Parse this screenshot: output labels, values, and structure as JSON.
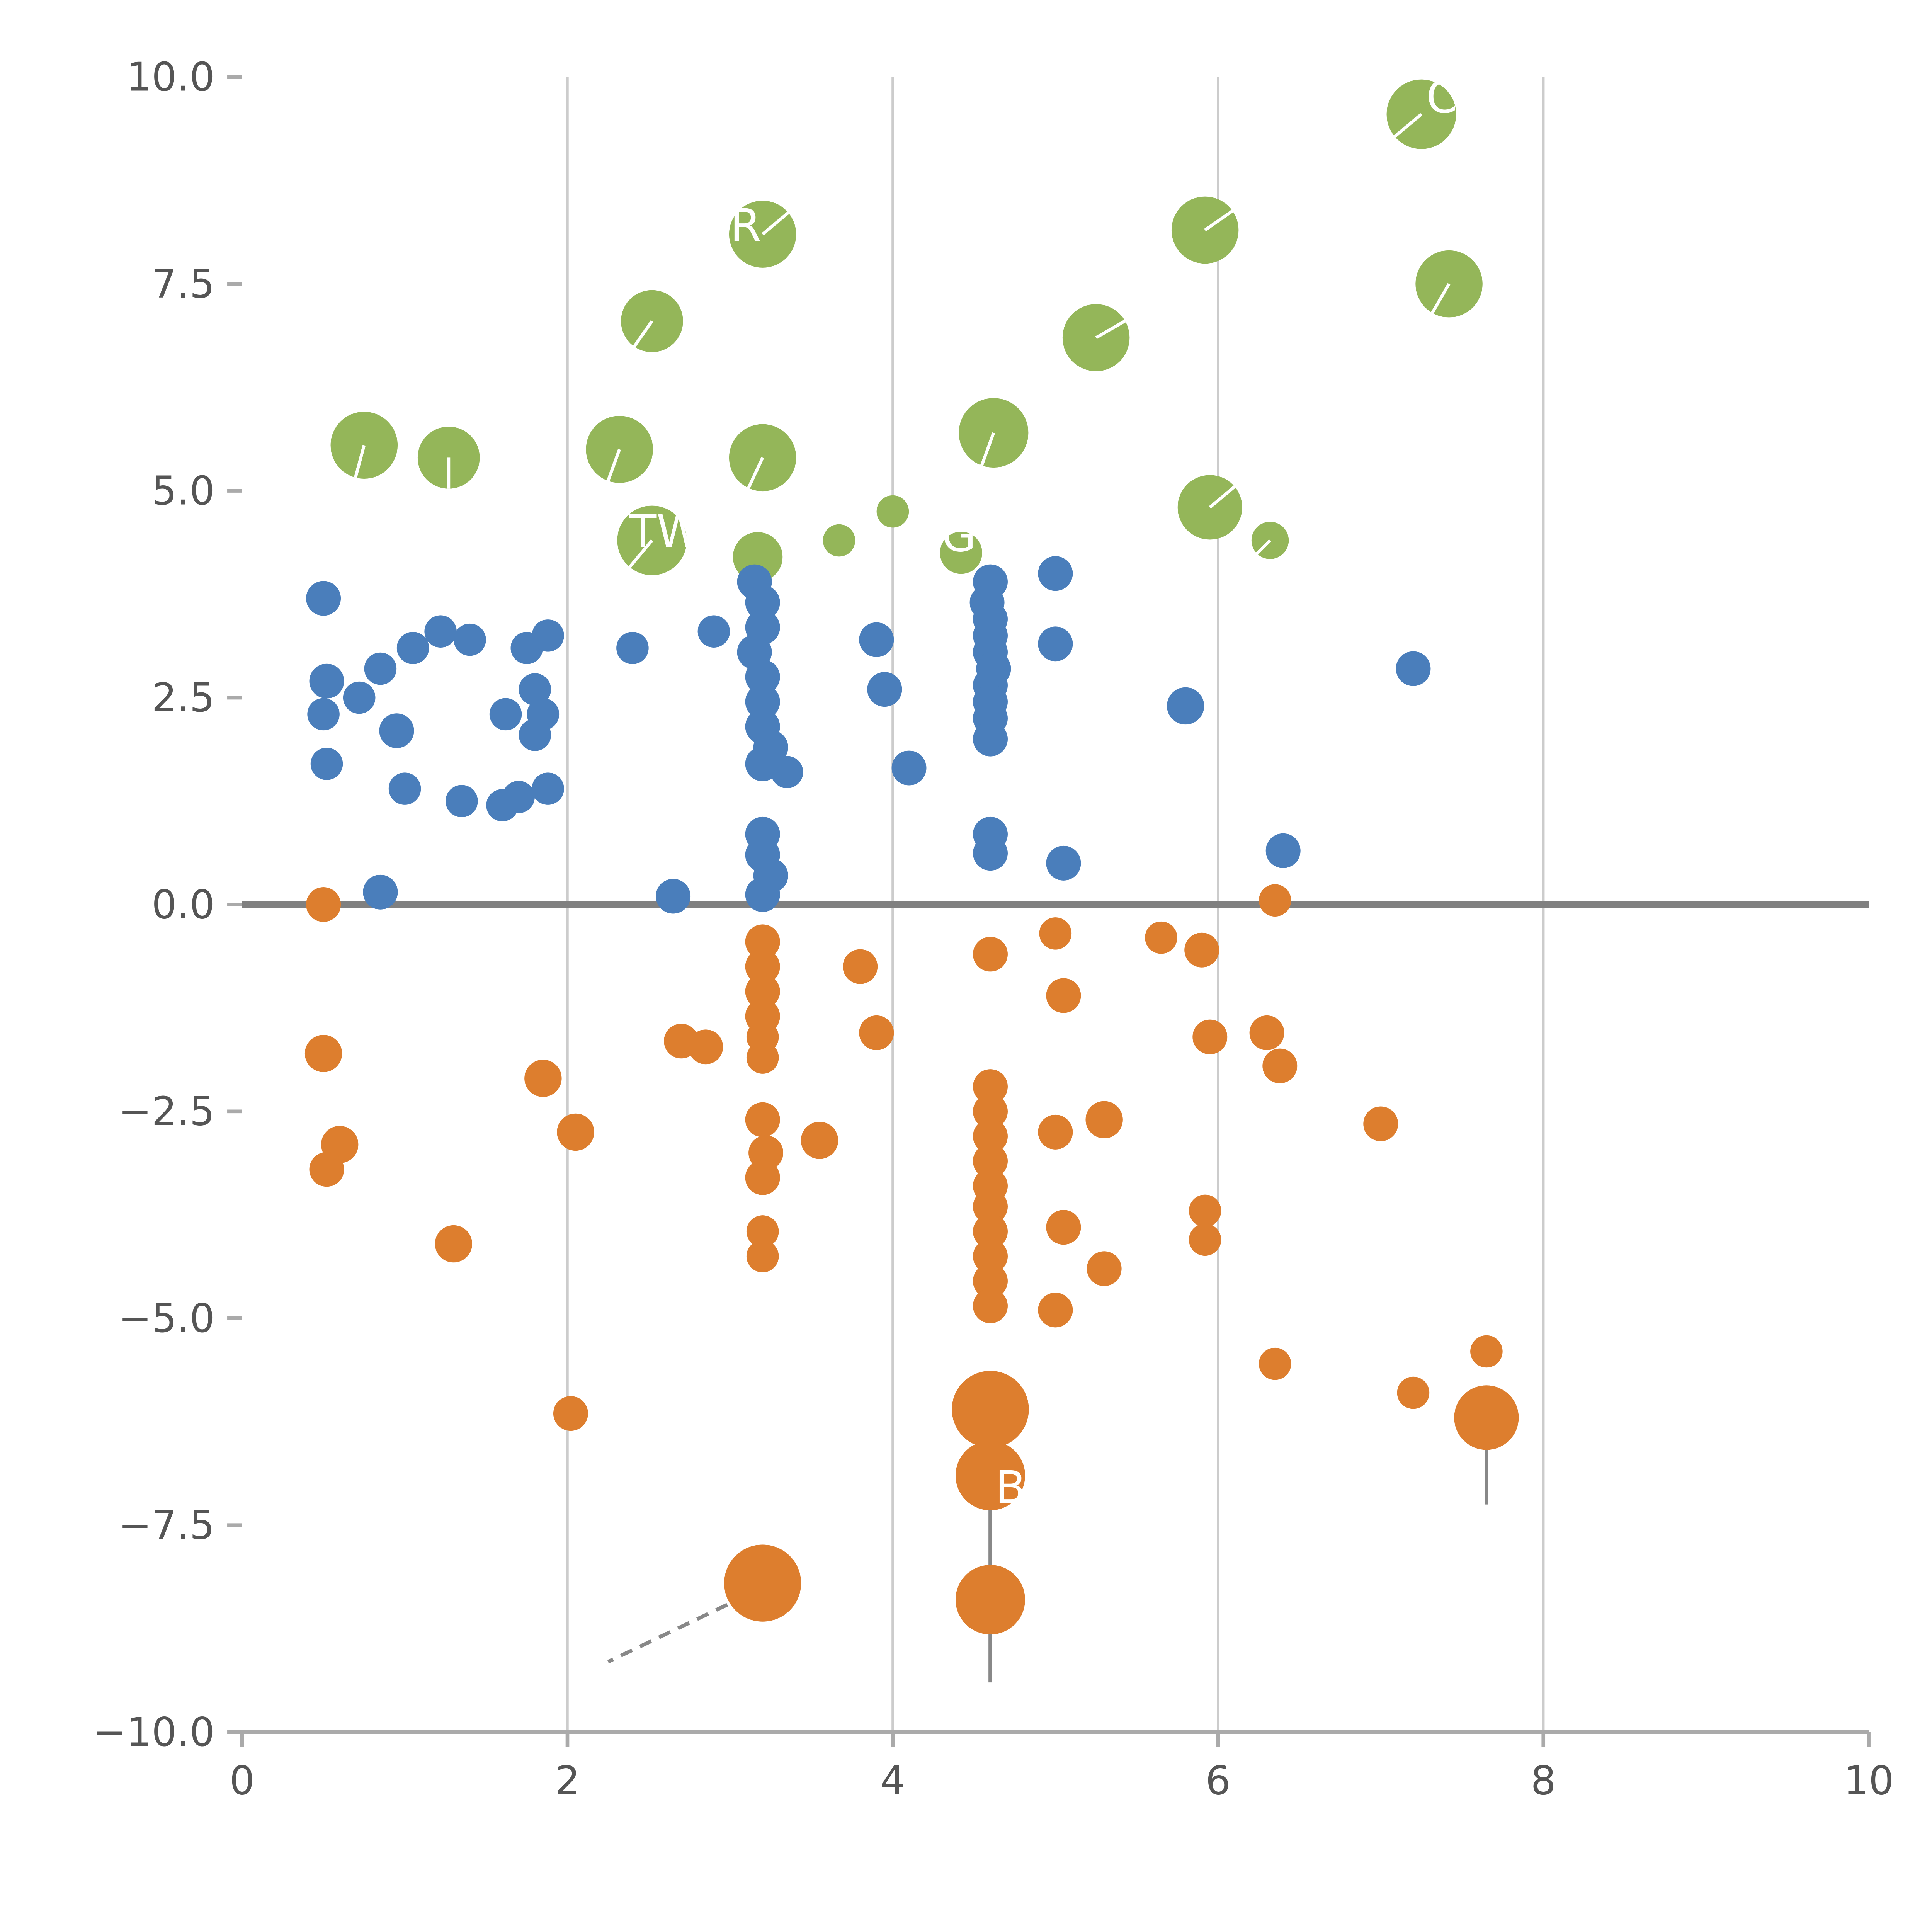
{
  "page": {
    "title": ""
  },
  "chart_data": {
    "type": "scatter",
    "title": "",
    "xlabel": "",
    "ylabel": "",
    "xlim": [
      0,
      10
    ],
    "ylim": [
      -10,
      10
    ],
    "grid": "vertical-only",
    "legend": "none",
    "x_tick_values": [
      0,
      2,
      4,
      6,
      8,
      10
    ],
    "x_tick_labels": [
      "0",
      "2",
      "4",
      "6",
      "8",
      "10"
    ],
    "y_tick_values": [
      10,
      7.5,
      5,
      2.5,
      0,
      -2.5,
      -5,
      -7.5,
      -10
    ],
    "y_tick_labels": [
      "10.0",
      "7.5",
      "5.0",
      "2.5",
      "0.0",
      "−2.5",
      "−5.0",
      "−7.5",
      "−10.0"
    ],
    "gridline_x_values": [
      2,
      4,
      6,
      8
    ],
    "zero_line_y": 0,
    "colors": {
      "green": "#94b659",
      "blue": "#4a7ebb",
      "orange": "#dd7e2e",
      "grid": "#cccccc",
      "zero_line": "#808080",
      "axis": "#aaaaaa",
      "tick_text": "#555555",
      "leader_line": "#888888",
      "annotation_text": "#ffffff"
    },
    "series": [
      {
        "name": "green-bubbles",
        "color": "#94b659",
        "points": [
          [
            0.75,
            5.55,
            27,
            255
          ],
          [
            1.27,
            5.4,
            25,
            270
          ],
          [
            2.32,
            5.5,
            27,
            250
          ],
          [
            3.2,
            5.4,
            27,
            245
          ],
          [
            2.52,
            7.05,
            25,
            235
          ],
          [
            3.2,
            8.1,
            27,
            40
          ],
          [
            4.62,
            5.7,
            28,
            250
          ],
          [
            5.25,
            6.85,
            27,
            30
          ],
          [
            5.92,
            8.15,
            27,
            35
          ],
          [
            7.25,
            9.55,
            28,
            220
          ],
          [
            7.42,
            7.5,
            27,
            240
          ],
          [
            5.95,
            4.8,
            26,
            40
          ],
          [
            2.52,
            4.4,
            28,
            230
          ],
          [
            3.17,
            4.2,
            20,
            null
          ],
          [
            3.67,
            4.4,
            13,
            null
          ],
          [
            4.0,
            4.75,
            13,
            null
          ],
          [
            4.42,
            4.25,
            17,
            null
          ],
          [
            6.32,
            4.4,
            15,
            225
          ]
        ]
      },
      {
        "name": "blue-dots",
        "color": "#4a7ebb",
        "points": [
          [
            0.5,
            3.7,
            14
          ],
          [
            0.52,
            2.7,
            14
          ],
          [
            0.5,
            2.3,
            13
          ],
          [
            0.52,
            1.7,
            13
          ],
          [
            0.72,
            2.5,
            13
          ],
          [
            0.85,
            2.85,
            13
          ],
          [
            0.95,
            2.1,
            14
          ],
          [
            0.85,
            0.15,
            14
          ],
          [
            1.05,
            3.1,
            13
          ],
          [
            1.0,
            1.4,
            13
          ],
          [
            1.22,
            3.3,
            13
          ],
          [
            1.4,
            3.2,
            13
          ],
          [
            1.35,
            1.25,
            13
          ],
          [
            1.62,
            2.3,
            13
          ],
          [
            1.6,
            1.2,
            13
          ],
          [
            1.75,
            3.1,
            13
          ],
          [
            1.88,
            3.25,
            13
          ],
          [
            1.8,
            2.6,
            13
          ],
          [
            1.85,
            2.3,
            13
          ],
          [
            1.8,
            2.05,
            13
          ],
          [
            1.88,
            1.4,
            13
          ],
          [
            1.7,
            1.3,
            13
          ],
          [
            2.4,
            3.1,
            13
          ],
          [
            2.65,
            0.1,
            14
          ],
          [
            2.9,
            3.3,
            13
          ],
          [
            3.15,
            3.9,
            14
          ],
          [
            3.2,
            3.65,
            14
          ],
          [
            3.2,
            3.35,
            14
          ],
          [
            3.15,
            3.05,
            14
          ],
          [
            3.2,
            2.75,
            14
          ],
          [
            3.2,
            2.45,
            14
          ],
          [
            3.2,
            2.15,
            14
          ],
          [
            3.25,
            1.9,
            14
          ],
          [
            3.2,
            1.7,
            14
          ],
          [
            3.35,
            1.6,
            13
          ],
          [
            3.2,
            0.85,
            14
          ],
          [
            3.2,
            0.6,
            14
          ],
          [
            3.25,
            0.35,
            14
          ],
          [
            3.2,
            0.12,
            14
          ],
          [
            3.9,
            3.2,
            14
          ],
          [
            3.95,
            2.6,
            14
          ],
          [
            4.1,
            1.65,
            14
          ],
          [
            4.6,
            3.9,
            14
          ],
          [
            4.58,
            3.65,
            14
          ],
          [
            4.6,
            3.45,
            14
          ],
          [
            4.6,
            3.25,
            14
          ],
          [
            4.6,
            3.05,
            14
          ],
          [
            4.62,
            2.85,
            14
          ],
          [
            4.6,
            2.65,
            14
          ],
          [
            4.6,
            2.45,
            14
          ],
          [
            4.6,
            2.25,
            14
          ],
          [
            4.6,
            2.0,
            14
          ],
          [
            4.6,
            0.85,
            14
          ],
          [
            4.6,
            0.62,
            14
          ],
          [
            5.0,
            4.0,
            14
          ],
          [
            5.0,
            3.15,
            14
          ],
          [
            5.05,
            0.5,
            14
          ],
          [
            5.8,
            2.4,
            15
          ],
          [
            6.4,
            0.65,
            14
          ],
          [
            7.2,
            2.85,
            14
          ]
        ]
      },
      {
        "name": "orange-dots",
        "color": "#dd7e2e",
        "points": [
          [
            0.5,
            0.0,
            14
          ],
          [
            0.5,
            -1.8,
            15
          ],
          [
            0.6,
            -2.9,
            15
          ],
          [
            0.52,
            -3.2,
            14
          ],
          [
            1.3,
            -4.1,
            15
          ],
          [
            1.85,
            -2.1,
            15
          ],
          [
            2.05,
            -2.75,
            15
          ],
          [
            2.02,
            -6.15,
            14
          ],
          [
            2.7,
            -1.65,
            14
          ],
          [
            2.85,
            -1.72,
            14
          ],
          [
            3.2,
            -0.45,
            14
          ],
          [
            3.2,
            -0.75,
            14
          ],
          [
            3.2,
            -1.05,
            14
          ],
          [
            3.2,
            -1.35,
            14
          ],
          [
            3.2,
            -1.6,
            13
          ],
          [
            3.2,
            -1.85,
            13
          ],
          [
            3.2,
            -2.6,
            14
          ],
          [
            3.22,
            -3.0,
            14
          ],
          [
            3.2,
            -3.3,
            14
          ],
          [
            3.2,
            -3.95,
            13
          ],
          [
            3.2,
            -4.25,
            13
          ],
          [
            3.2,
            -8.2,
            31
          ],
          [
            3.55,
            -2.85,
            15
          ],
          [
            3.8,
            -0.75,
            14
          ],
          [
            3.9,
            -1.55,
            14
          ],
          [
            4.6,
            -0.6,
            14
          ],
          [
            4.6,
            -2.2,
            14
          ],
          [
            4.6,
            -2.5,
            14
          ],
          [
            4.6,
            -2.8,
            14
          ],
          [
            4.6,
            -3.1,
            14
          ],
          [
            4.6,
            -3.4,
            14
          ],
          [
            4.6,
            -3.65,
            14
          ],
          [
            4.6,
            -3.95,
            14
          ],
          [
            4.6,
            -4.25,
            14
          ],
          [
            4.6,
            -4.55,
            14
          ],
          [
            4.6,
            -4.85,
            14
          ],
          [
            4.6,
            -6.1,
            31
          ],
          [
            4.6,
            -6.9,
            28
          ],
          [
            4.6,
            -8.4,
            28
          ],
          [
            5.0,
            -0.35,
            13
          ],
          [
            5.05,
            -1.1,
            14
          ],
          [
            5.0,
            -2.75,
            14
          ],
          [
            5.05,
            -3.9,
            14
          ],
          [
            5.0,
            -4.9,
            14
          ],
          [
            5.3,
            -2.6,
            15
          ],
          [
            5.3,
            -4.4,
            14
          ],
          [
            5.65,
            -0.4,
            13
          ],
          [
            5.9,
            -0.55,
            14
          ],
          [
            5.95,
            -1.6,
            14
          ],
          [
            5.92,
            -3.7,
            13
          ],
          [
            5.92,
            -4.05,
            13
          ],
          [
            6.3,
            -1.55,
            14
          ],
          [
            6.38,
            -1.95,
            14
          ],
          [
            6.35,
            0.05,
            13
          ],
          [
            6.35,
            -5.55,
            13
          ],
          [
            7.0,
            -2.65,
            14
          ],
          [
            7.2,
            -5.9,
            13
          ],
          [
            7.65,
            -5.4,
            13
          ],
          [
            7.65,
            -6.2,
            26
          ]
        ]
      }
    ],
    "annotations": [
      {
        "text": "C",
        "x": 7.28,
        "y": 9.75
      },
      {
        "text": "R",
        "x": 3.0,
        "y": 8.2
      },
      {
        "text": "TW",
        "x": 2.38,
        "y": 4.5
      },
      {
        "text": "G-a",
        "x": 4.3,
        "y": 4.45
      },
      {
        "text": "B",
        "x": 4.63,
        "y": -7.05
      }
    ],
    "leader_lines": [
      {
        "x1": 3.1,
        "y1": -8.35,
        "x2": 2.25,
        "y2": -9.15,
        "dashed": true
      },
      {
        "x1": 4.6,
        "y1": -7.3,
        "x2": 4.6,
        "y2": -9.4,
        "dashed": false
      },
      {
        "x1": 7.65,
        "y1": -6.4,
        "x2": 7.65,
        "y2": -7.25,
        "dashed": false
      }
    ]
  }
}
